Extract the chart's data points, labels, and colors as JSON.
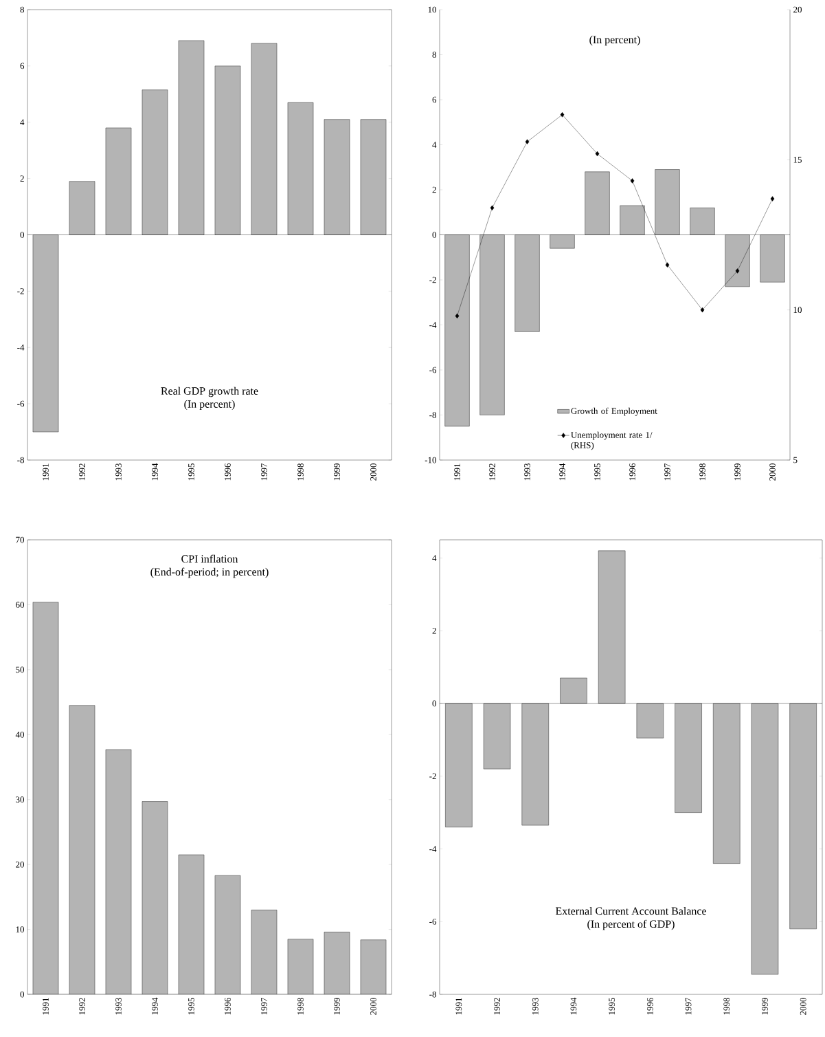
{
  "chart_data": [
    {
      "type": "bar",
      "title": "Real GDP growth rate",
      "subtitle": "(In percent)",
      "categories": [
        "1991",
        "1992",
        "1993",
        "1994",
        "1995",
        "1996",
        "1997",
        "1998",
        "1999",
        "2000"
      ],
      "values": [
        -7.0,
        1.9,
        3.8,
        5.15,
        6.9,
        6.0,
        6.8,
        4.7,
        4.1,
        4.1
      ],
      "color": "#b4b4b4",
      "ylim": [
        -8,
        8
      ],
      "yticks": [
        -8,
        -6,
        -4,
        -2,
        0,
        2,
        4,
        6,
        8
      ]
    },
    {
      "type": "bar",
      "title": "(In percent)",
      "categories": [
        "1991",
        "1992",
        "1993",
        "1994",
        "1995",
        "1996",
        "1997",
        "1998",
        "1999",
        "2000"
      ],
      "series": [
        {
          "name": "Growth of Employment",
          "color": "#b4b4b4",
          "values": [
            -8.5,
            -8.0,
            -4.3,
            -0.6,
            2.8,
            1.3,
            2.9,
            1.2,
            -2.3,
            -2.1
          ]
        },
        {
          "name": "Unemployment rate 1/ (RHS)",
          "type": "line",
          "axis": "y2",
          "color": "#000000",
          "values": [
            9.8,
            13.4,
            15.6,
            16.5,
            15.2,
            14.3,
            11.5,
            10.0,
            11.3,
            13.7
          ]
        }
      ],
      "ylim": [
        -10,
        10
      ],
      "yticks": [
        -10,
        -8,
        -6,
        -4,
        -2,
        0,
        2,
        4,
        6,
        8,
        10
      ],
      "y2lim": [
        5,
        20
      ],
      "y2ticks": [
        5,
        10,
        15,
        20
      ],
      "legend": "bottom",
      "marker": "diamond",
      "line_style": "solid"
    },
    {
      "type": "bar",
      "title": "CPI inflation",
      "subtitle": "(End-of-period; in percent)",
      "categories": [
        "1991",
        "1992",
        "1993",
        "1994",
        "1995",
        "1996",
        "1997",
        "1998",
        "1999",
        "2000"
      ],
      "values": [
        60.4,
        44.5,
        37.7,
        29.7,
        21.5,
        18.3,
        13.0,
        8.5,
        9.6,
        8.4
      ],
      "color": "#b4b4b4",
      "ylim": [
        0,
        70
      ],
      "yticks": [
        0,
        10,
        20,
        30,
        40,
        50,
        60,
        70
      ]
    },
    {
      "type": "bar",
      "title": "External Current Account Balance",
      "subtitle": "(In percent of GDP)",
      "categories": [
        "1991",
        "1992",
        "1993",
        "1994",
        "1995",
        "1996",
        "1997",
        "1998",
        "1999",
        "2000"
      ],
      "values": [
        -3.4,
        -1.8,
        -3.35,
        0.7,
        4.2,
        -0.95,
        -3.0,
        -4.4,
        -7.45,
        -6.2
      ],
      "color": "#b4b4b4",
      "ylim": [
        -8,
        4.5
      ],
      "yticks": [
        -8,
        -6,
        -4,
        -2,
        0,
        2,
        4
      ]
    }
  ]
}
